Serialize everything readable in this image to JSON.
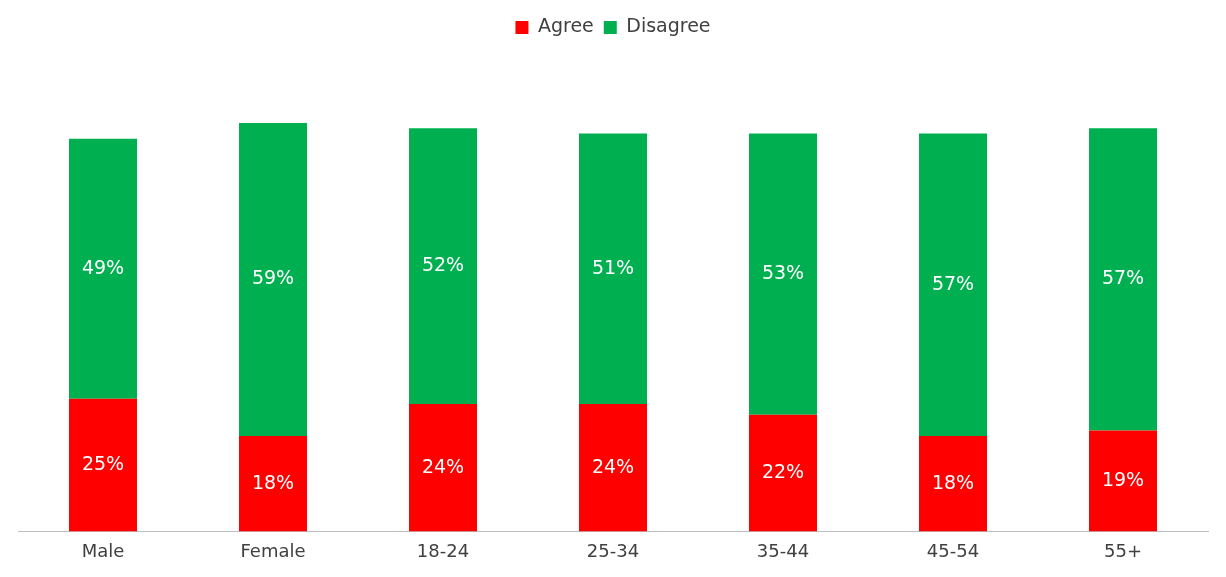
{
  "chart_data": {
    "type": "bar",
    "stacked": true,
    "categories": [
      "Male",
      "Female",
      "18-24",
      "25-34",
      "35-44",
      "45-54",
      "55+"
    ],
    "series": [
      {
        "name": "Agree",
        "color": "#ff0000",
        "values": [
          25,
          18,
          24,
          24,
          22,
          18,
          19
        ],
        "value_labels": [
          "25%",
          "18%",
          "24%",
          "24%",
          "22%",
          "18%",
          "19%"
        ]
      },
      {
        "name": "Disagree",
        "color": "#00b050",
        "values": [
          49,
          59,
          52,
          51,
          53,
          57,
          57
        ],
        "value_labels": [
          "49%",
          "59%",
          "52%",
          "51%",
          "53%",
          "57%",
          "57%"
        ]
      }
    ],
    "legend": "top",
    "grid": false
  }
}
